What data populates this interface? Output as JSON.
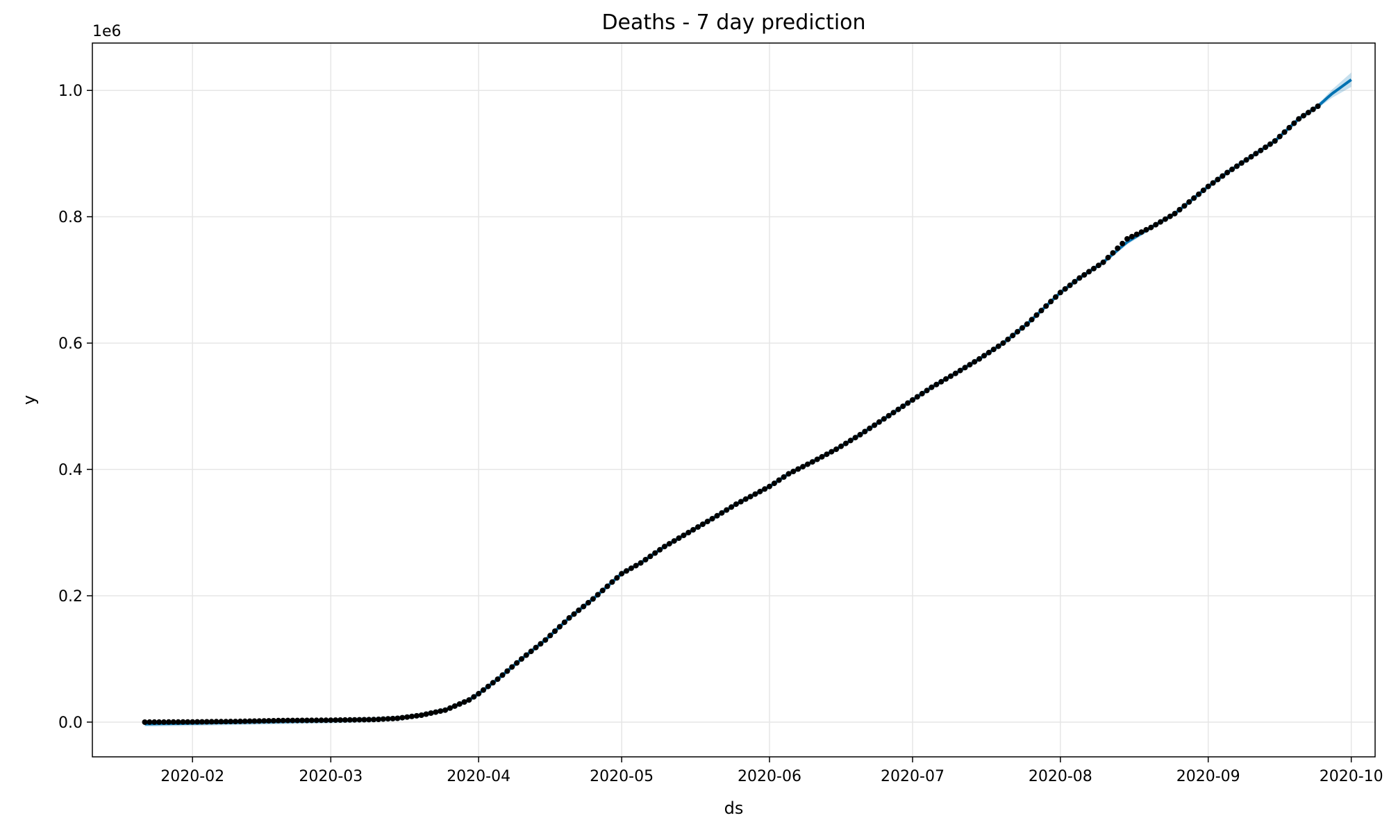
{
  "chart_data": {
    "type": "line",
    "title": "Deaths - 7 day prediction",
    "xlabel": "ds",
    "ylabel": "y",
    "y_offset_label": "1e6",
    "grid": true,
    "xlim": [
      "2020-01-11",
      "2020-10-06"
    ],
    "ylim": [
      -0.055,
      1.075
    ],
    "x_ticks": [
      {
        "date": "2020-02-01",
        "label": "2020-02"
      },
      {
        "date": "2020-03-01",
        "label": "2020-03"
      },
      {
        "date": "2020-04-01",
        "label": "2020-04"
      },
      {
        "date": "2020-05-01",
        "label": "2020-05"
      },
      {
        "date": "2020-06-01",
        "label": "2020-06"
      },
      {
        "date": "2020-07-01",
        "label": "2020-07"
      },
      {
        "date": "2020-08-01",
        "label": "2020-08"
      },
      {
        "date": "2020-09-01",
        "label": "2020-09"
      },
      {
        "date": "2020-10-01",
        "label": "2020-10"
      }
    ],
    "y_ticks": [
      {
        "value": 0.0,
        "label": "0.0"
      },
      {
        "value": 0.2,
        "label": "0.2"
      },
      {
        "value": 0.4,
        "label": "0.4"
      },
      {
        "value": 0.6,
        "label": "0.6"
      },
      {
        "value": 0.8,
        "label": "0.8"
      },
      {
        "value": 1.0,
        "label": "1.0"
      }
    ],
    "series": [
      {
        "kind": "observed",
        "color": "#000000",
        "points": [
          [
            "2020-01-22",
            0.0
          ],
          [
            "2020-02-01",
            0.0003
          ],
          [
            "2020-02-10",
            0.001
          ],
          [
            "2020-02-20",
            0.0025
          ],
          [
            "2020-03-01",
            0.003
          ],
          [
            "2020-03-10",
            0.004
          ],
          [
            "2020-03-15",
            0.006
          ],
          [
            "2020-03-20",
            0.011
          ],
          [
            "2020-03-25",
            0.019
          ],
          [
            "2020-03-30",
            0.035
          ],
          [
            "2020-04-01",
            0.045
          ],
          [
            "2020-04-05",
            0.068
          ],
          [
            "2020-04-10",
            0.1
          ],
          [
            "2020-04-15",
            0.13
          ],
          [
            "2020-04-20",
            0.165
          ],
          [
            "2020-04-25",
            0.195
          ],
          [
            "2020-05-01",
            0.235
          ],
          [
            "2020-05-05",
            0.252
          ],
          [
            "2020-05-10",
            0.278
          ],
          [
            "2020-05-15",
            0.3
          ],
          [
            "2020-05-20",
            0.322
          ],
          [
            "2020-05-25",
            0.345
          ],
          [
            "2020-06-01",
            0.373
          ],
          [
            "2020-06-05",
            0.393
          ],
          [
            "2020-06-10",
            0.412
          ],
          [
            "2020-06-15",
            0.432
          ],
          [
            "2020-06-20",
            0.455
          ],
          [
            "2020-06-25",
            0.48
          ],
          [
            "2020-07-01",
            0.51
          ],
          [
            "2020-07-05",
            0.53
          ],
          [
            "2020-07-10",
            0.552
          ],
          [
            "2020-07-15",
            0.575
          ],
          [
            "2020-07-20",
            0.6
          ],
          [
            "2020-07-25",
            0.63
          ],
          [
            "2020-08-01",
            0.68
          ],
          [
            "2020-08-05",
            0.703
          ],
          [
            "2020-08-10",
            0.728
          ],
          [
            "2020-08-15",
            0.765
          ],
          [
            "2020-08-20",
            0.783
          ],
          [
            "2020-08-25",
            0.805
          ],
          [
            "2020-09-01",
            0.848
          ],
          [
            "2020-09-05",
            0.87
          ],
          [
            "2020-09-10",
            0.895
          ],
          [
            "2020-09-15",
            0.92
          ],
          [
            "2020-09-20",
            0.955
          ],
          [
            "2020-09-24",
            0.975
          ]
        ]
      },
      {
        "kind": "forecast",
        "color": "#0072B2",
        "points": [
          [
            "2020-01-22",
            -0.003
          ],
          [
            "2020-02-01",
            -0.002
          ],
          [
            "2020-02-15",
            0.0
          ],
          [
            "2020-03-01",
            0.002
          ],
          [
            "2020-03-10",
            0.004
          ],
          [
            "2020-03-15",
            0.006
          ],
          [
            "2020-03-20",
            0.011
          ],
          [
            "2020-03-25",
            0.019
          ],
          [
            "2020-03-30",
            0.035
          ],
          [
            "2020-04-01",
            0.045
          ],
          [
            "2020-04-05",
            0.068
          ],
          [
            "2020-04-10",
            0.1
          ],
          [
            "2020-04-15",
            0.13
          ],
          [
            "2020-04-20",
            0.165
          ],
          [
            "2020-04-25",
            0.195
          ],
          [
            "2020-05-01",
            0.235
          ],
          [
            "2020-05-05",
            0.252
          ],
          [
            "2020-05-10",
            0.278
          ],
          [
            "2020-05-15",
            0.3
          ],
          [
            "2020-05-20",
            0.322
          ],
          [
            "2020-05-25",
            0.345
          ],
          [
            "2020-06-01",
            0.373
          ],
          [
            "2020-06-05",
            0.393
          ],
          [
            "2020-06-10",
            0.412
          ],
          [
            "2020-06-15",
            0.432
          ],
          [
            "2020-06-20",
            0.455
          ],
          [
            "2020-06-25",
            0.48
          ],
          [
            "2020-07-01",
            0.51
          ],
          [
            "2020-07-05",
            0.53
          ],
          [
            "2020-07-10",
            0.552
          ],
          [
            "2020-07-15",
            0.575
          ],
          [
            "2020-07-20",
            0.6
          ],
          [
            "2020-07-25",
            0.63
          ],
          [
            "2020-08-01",
            0.68
          ],
          [
            "2020-08-05",
            0.703
          ],
          [
            "2020-08-10",
            0.728
          ],
          [
            "2020-08-15",
            0.76
          ],
          [
            "2020-08-20",
            0.783
          ],
          [
            "2020-08-25",
            0.805
          ],
          [
            "2020-09-01",
            0.848
          ],
          [
            "2020-09-05",
            0.87
          ],
          [
            "2020-09-10",
            0.895
          ],
          [
            "2020-09-15",
            0.92
          ],
          [
            "2020-09-20",
            0.955
          ],
          [
            "2020-09-24",
            0.975
          ],
          [
            "2020-09-27",
            0.995
          ],
          [
            "2020-10-01",
            1.017
          ]
        ]
      }
    ]
  }
}
